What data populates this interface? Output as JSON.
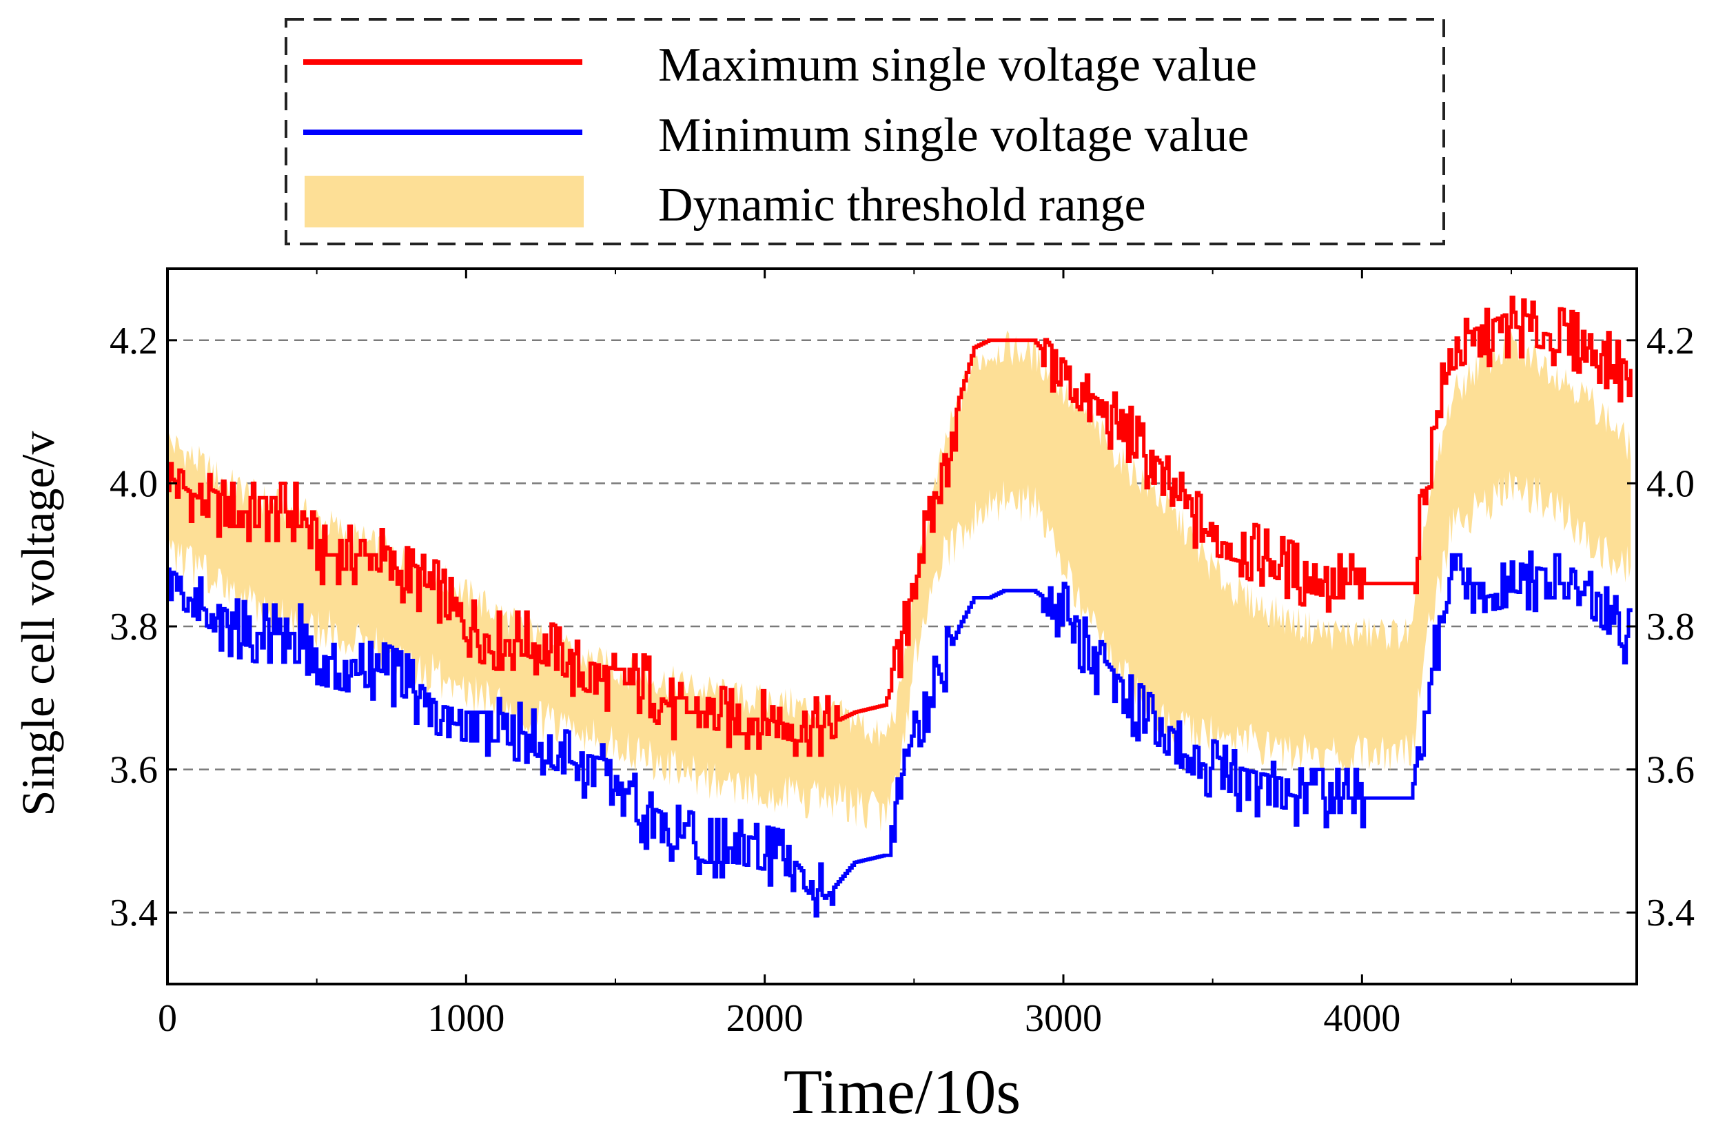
{
  "chart_data": {
    "type": "line",
    "title": "",
    "xlabel": "Time/10s",
    "ylabel": "Single cell voltage/v",
    "xlim": [
      0,
      4920
    ],
    "ylim": [
      3.3,
      4.3
    ],
    "grid": "horizontal dashed",
    "legend_position": "top-center",
    "x_ticks": [
      0,
      1000,
      2000,
      3000,
      4000
    ],
    "x_tick_labels": [
      "0",
      "1000",
      "2000",
      "3000",
      "4000"
    ],
    "y_ticks": [
      3.4,
      3.6,
      3.8,
      4.0,
      4.2
    ],
    "y_tick_labels": [
      "3.4",
      "3.6",
      "3.8",
      "4.0",
      "4.2"
    ],
    "legend": {
      "max": "Maximum single voltage value",
      "min": "Minimum single voltage value",
      "band": "Dynamic threshold range"
    },
    "colors": {
      "max": "#ff0000",
      "min": "#0000ff",
      "band": "#fddf96"
    },
    "series": [
      {
        "name": "Maximum single voltage value",
        "key": "max",
        "x": [
          0,
          100,
          200,
          300,
          450,
          500,
          600,
          700,
          800,
          900,
          1000,
          1100,
          1200,
          1300,
          1400,
          1500,
          1600,
          1700,
          1800,
          1900,
          2000,
          2100,
          2200,
          2300,
          2400,
          2450,
          2500,
          2550,
          2600,
          2650,
          2700,
          2750,
          2800,
          2850,
          2900,
          3000,
          3100,
          3200,
          3300,
          3400,
          3500,
          3600,
          3700,
          3800,
          3900,
          4000,
          4100,
          4170,
          4200,
          4250,
          4300,
          4400,
          4500,
          4600,
          4700,
          4800,
          4900
        ],
        "values": [
          4.01,
          3.98,
          3.96,
          3.96,
          3.96,
          3.9,
          3.9,
          3.9,
          3.87,
          3.85,
          3.8,
          3.78,
          3.78,
          3.76,
          3.73,
          3.72,
          3.72,
          3.68,
          3.68,
          3.67,
          3.67,
          3.66,
          3.66,
          3.68,
          3.69,
          3.75,
          3.88,
          3.94,
          4.02,
          4.12,
          4.19,
          4.2,
          4.2,
          4.2,
          4.2,
          4.15,
          4.1,
          4.08,
          4.02,
          3.97,
          3.92,
          3.91,
          3.89,
          3.87,
          3.86,
          3.86,
          3.86,
          3.86,
          3.97,
          4.1,
          4.18,
          4.2,
          4.22,
          4.21,
          4.2,
          4.18,
          4.14
        ]
      },
      {
        "name": "Minimum single voltage value",
        "key": "min",
        "x": [
          0,
          100,
          200,
          300,
          450,
          500,
          600,
          700,
          800,
          900,
          1000,
          1100,
          1200,
          1300,
          1400,
          1500,
          1600,
          1700,
          1800,
          1900,
          2000,
          2100,
          2200,
          2300,
          2400,
          2430,
          2450,
          2500,
          2550,
          2600,
          2650,
          2700,
          2750,
          2800,
          2850,
          2900,
          3000,
          3100,
          3200,
          3300,
          3400,
          3500,
          3600,
          3700,
          3800,
          3900,
          4000,
          4100,
          4170,
          4200,
          4250,
          4300,
          4400,
          4500,
          4600,
          4700,
          4800,
          4900
        ],
        "values": [
          3.86,
          3.83,
          3.8,
          3.79,
          3.79,
          3.74,
          3.73,
          3.74,
          3.72,
          3.67,
          3.66,
          3.66,
          3.65,
          3.62,
          3.6,
          3.59,
          3.53,
          3.51,
          3.49,
          3.49,
          3.48,
          3.47,
          3.42,
          3.47,
          3.48,
          3.48,
          3.58,
          3.66,
          3.7,
          3.75,
          3.8,
          3.84,
          3.84,
          3.85,
          3.85,
          3.85,
          3.82,
          3.75,
          3.7,
          3.66,
          3.62,
          3.6,
          3.58,
          3.57,
          3.56,
          3.56,
          3.56,
          3.56,
          3.56,
          3.66,
          3.78,
          3.86,
          3.86,
          3.87,
          3.86,
          3.86,
          3.82,
          3.78
        ]
      },
      {
        "name": "Dynamic threshold range",
        "key": "band",
        "x": [
          0,
          100,
          200,
          300,
          500,
          700,
          900,
          1100,
          1300,
          1500,
          1700,
          1900,
          2100,
          2300,
          2400,
          2450,
          2500,
          2600,
          2700,
          2800,
          2900,
          3000,
          3100,
          3200,
          3300,
          3400,
          3500,
          3600,
          3700,
          3800,
          3900,
          4000,
          4100,
          4170,
          4200,
          4300,
          4400,
          4500,
          4600,
          4700,
          4800,
          4900
        ],
        "upper": [
          4.06,
          4.03,
          4.0,
          3.98,
          3.95,
          3.91,
          3.87,
          3.82,
          3.77,
          3.74,
          3.72,
          3.7,
          3.69,
          3.67,
          3.64,
          3.7,
          3.85,
          4.05,
          4.17,
          4.19,
          4.18,
          4.13,
          4.08,
          4.03,
          3.99,
          3.94,
          3.88,
          3.84,
          3.82,
          3.8,
          3.79,
          3.79,
          3.79,
          3.79,
          3.92,
          4.12,
          4.17,
          4.19,
          4.17,
          4.14,
          4.1,
          4.05
        ],
        "lower": [
          3.9,
          3.88,
          3.85,
          3.83,
          3.8,
          3.77,
          3.73,
          3.69,
          3.66,
          3.63,
          3.6,
          3.57,
          3.56,
          3.55,
          3.54,
          3.6,
          3.75,
          3.9,
          3.95,
          3.98,
          3.97,
          3.88,
          3.8,
          3.73,
          3.68,
          3.66,
          3.65,
          3.64,
          3.63,
          3.62,
          3.62,
          3.62,
          3.62,
          3.63,
          3.75,
          3.94,
          3.97,
          3.99,
          3.98,
          3.95,
          3.91,
          3.88
        ]
      }
    ]
  }
}
